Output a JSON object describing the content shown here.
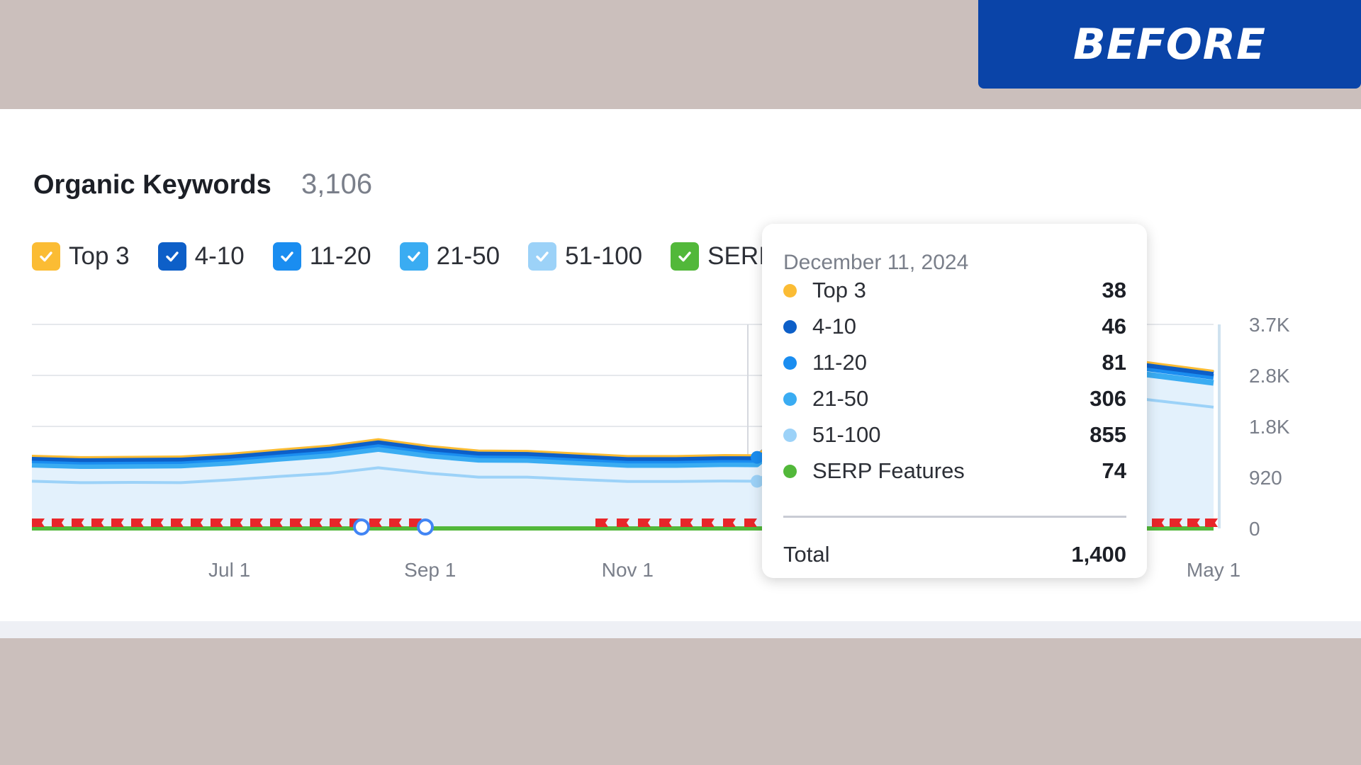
{
  "badge": {
    "label": "BEFORE"
  },
  "header": {
    "title": "Organic Keywords",
    "count": "3,106"
  },
  "legend": [
    {
      "label": "Top 3",
      "color": "#fbbc34"
    },
    {
      "label": "4-10",
      "color": "#0d5fc8"
    },
    {
      "label": "11-20",
      "color": "#1a8df0"
    },
    {
      "label": "21-50",
      "color": "#3aacf2"
    },
    {
      "label": "51-100",
      "color": "#9cd2f8"
    },
    {
      "label": "SERI",
      "color": "#52b83a"
    }
  ],
  "tooltip": {
    "date": "December 11, 2024",
    "rows": [
      {
        "name": "Top 3",
        "value": "38",
        "color": "#fbbc34"
      },
      {
        "name": "4-10",
        "value": "46",
        "color": "#0d5fc8"
      },
      {
        "name": "11-20",
        "value": "81",
        "color": "#1a8df0"
      },
      {
        "name": "21-50",
        "value": "306",
        "color": "#3aacf2"
      },
      {
        "name": "51-100",
        "value": "855",
        "color": "#9cd2f8"
      },
      {
        "name": "SERP Features",
        "value": "74",
        "color": "#52b83a"
      }
    ],
    "total_label": "Total",
    "total_value": "1,400"
  },
  "chart_data": {
    "type": "area",
    "stacked": true,
    "x_tick_labels": [
      "Jul 1",
      "Sep 1",
      "Nov 1",
      "May 1"
    ],
    "y_tick_labels": [
      "3.7K",
      "2.8K",
      "1.8K",
      "920",
      "0"
    ],
    "ylim": [
      0,
      3700
    ],
    "grid": true,
    "x": [
      "2024-05-01",
      "2024-05-16",
      "2024-06-01",
      "2024-06-16",
      "2024-07-01",
      "2024-07-16",
      "2024-08-01",
      "2024-08-16",
      "2024-09-01",
      "2024-09-16",
      "2024-10-01",
      "2024-10-16",
      "2024-11-01",
      "2024-11-16",
      "2024-12-01",
      "2024-12-11",
      "2025-01-01",
      "2025-02-01",
      "2025-03-01",
      "2025-04-01",
      "2025-04-16",
      "2025-05-01"
    ],
    "series": [
      {
        "name": "51-100",
        "values": [
          855,
          830,
          835,
          830,
          880,
          940,
          1000,
          1100,
          1000,
          930,
          930,
          890,
          850,
          850,
          860,
          855,
          1800,
          2000,
          2200,
          2400,
          2300,
          2200
        ]
      },
      {
        "name": "21-50",
        "values": [
          300,
          300,
          300,
          310,
          310,
          320,
          330,
          340,
          320,
          315,
          310,
          306,
          300,
          300,
          305,
          306,
          400,
          420,
          440,
          460,
          450,
          440
        ]
      },
      {
        "name": "11-20",
        "values": [
          80,
          80,
          80,
          80,
          80,
          82,
          85,
          88,
          84,
          82,
          81,
          80,
          80,
          80,
          81,
          81,
          100,
          105,
          110,
          115,
          110,
          108
        ]
      },
      {
        "name": "4-10",
        "values": [
          45,
          45,
          45,
          46,
          46,
          47,
          48,
          50,
          48,
          47,
          46,
          46,
          45,
          45,
          46,
          46,
          60,
          62,
          64,
          66,
          64,
          63
        ]
      },
      {
        "name": "Top 3",
        "values": [
          37,
          37,
          37,
          38,
          38,
          38,
          39,
          40,
          39,
          38,
          38,
          38,
          37,
          37,
          38,
          38,
          45,
          46,
          47,
          48,
          47,
          46
        ]
      }
    ],
    "serp_features_value": 74,
    "colors": {
      "top3": "#fbbc34",
      "r4_10": "#0d5fc8",
      "r11_20": "#1a8df0",
      "r21_50": "#3aacf2",
      "r51_100": "#9cd2f8",
      "fill": "#e3f1fc",
      "serp": "#52b83a",
      "flag": "#e8262a"
    }
  }
}
